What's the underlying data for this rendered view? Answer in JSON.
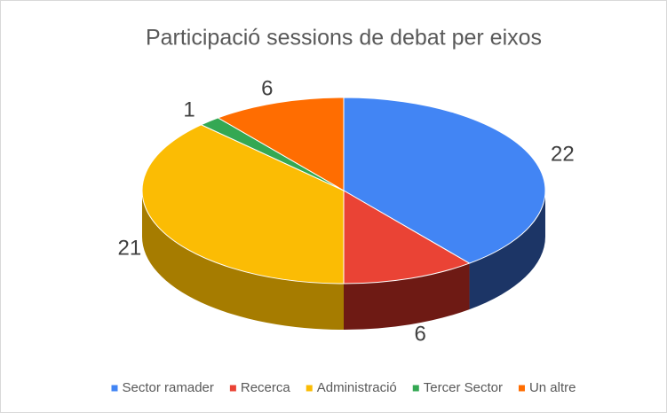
{
  "chart_data": {
    "type": "pie",
    "title": "Participació sessions de debat per eixos",
    "categories": [
      "Sector ramader",
      "Recerca",
      "Administració",
      "Tercer Sector",
      "Un altre"
    ],
    "values": [
      22,
      6,
      21,
      1,
      6
    ],
    "colors": [
      "#4285f4",
      "#ea4335",
      "#fbbc04",
      "#34a853",
      "#ff6d01"
    ],
    "side_colors": [
      "#1c3566",
      "#6e1a14",
      "#a67c00",
      "#1a5c2c",
      "#8a3a00"
    ],
    "legend": "bottom"
  }
}
